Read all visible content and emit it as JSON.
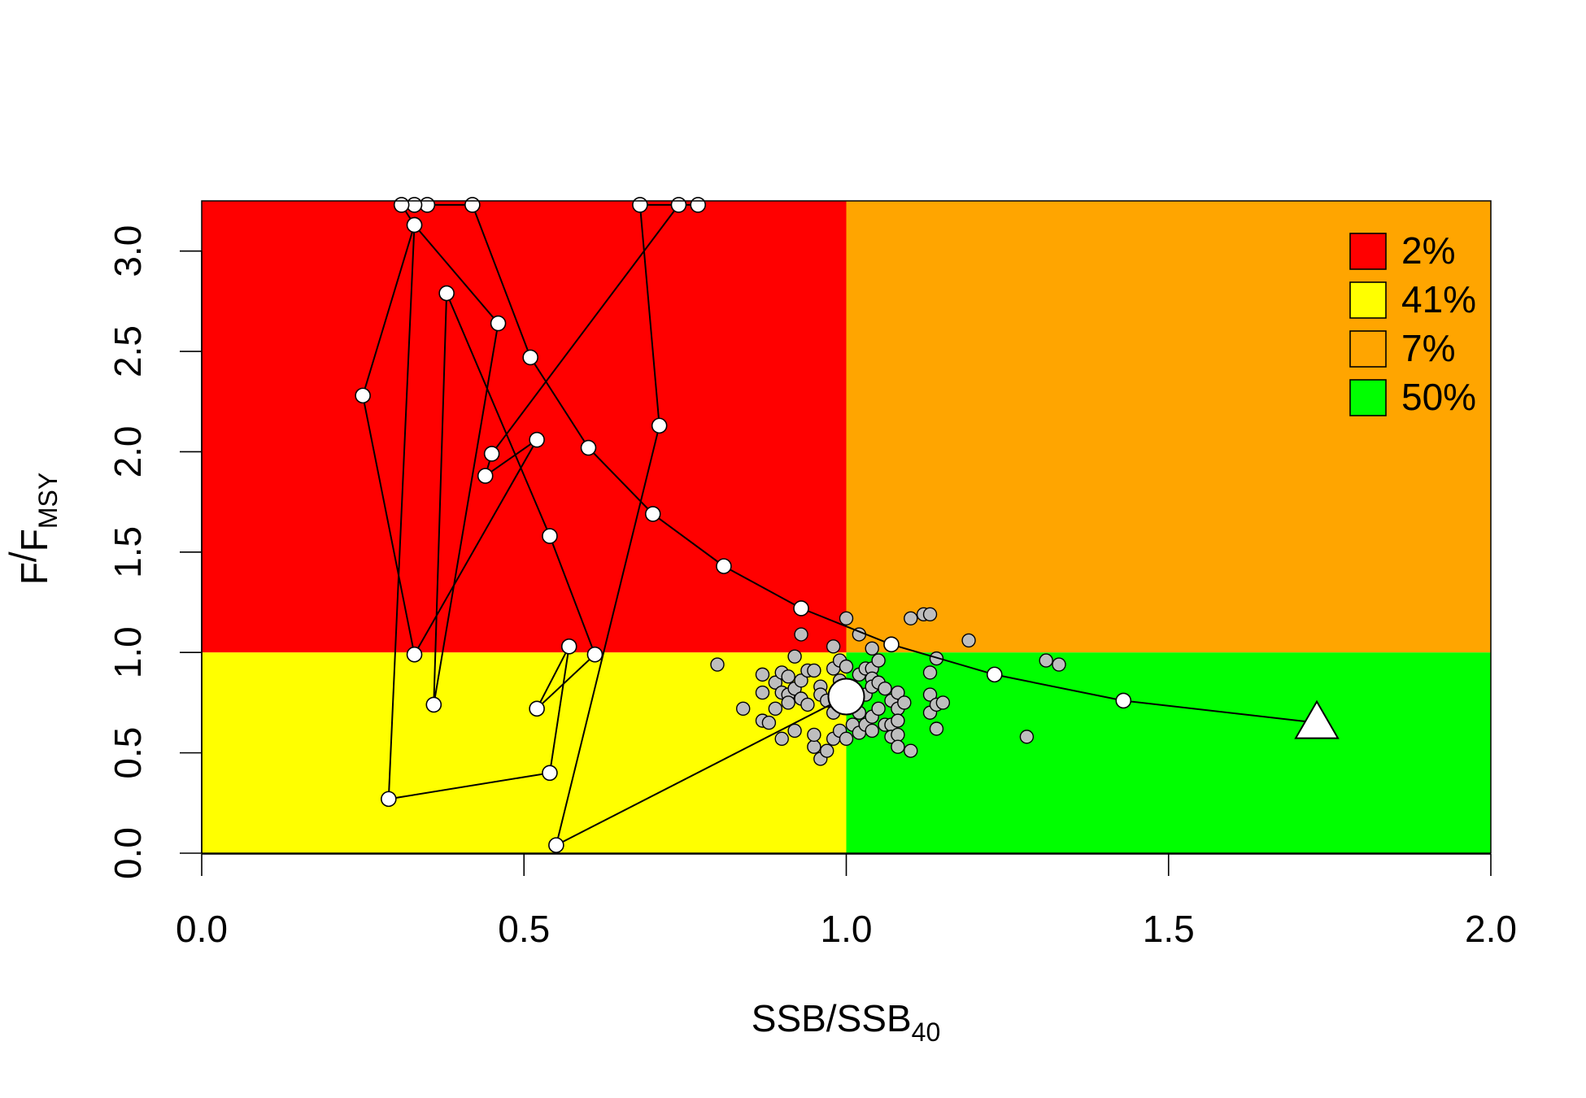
{
  "chart_data": {
    "type": "scatter",
    "title": "",
    "xlabel": {
      "main": "SSB/SSB",
      "sub": "40"
    },
    "ylabel": {
      "main": "F",
      "sep": "/",
      "main2": "F",
      "sub": "MSY"
    },
    "xlim": [
      0,
      2
    ],
    "ylim": [
      0,
      3.25
    ],
    "x_ticks": [
      {
        "value": 0,
        "label": "0.0"
      },
      {
        "value": 0.5,
        "label": "0.5"
      },
      {
        "value": 1,
        "label": "1.0"
      },
      {
        "value": 1.5,
        "label": "1.5"
      },
      {
        "value": 2,
        "label": "2.0"
      }
    ],
    "y_ticks": [
      {
        "value": 0,
        "label": "0.0"
      },
      {
        "value": 0.5,
        "label": "0.5"
      },
      {
        "value": 1,
        "label": "1.0"
      },
      {
        "value": 1.5,
        "label": "1.5"
      },
      {
        "value": 2,
        "label": "2.0"
      },
      {
        "value": 2.5,
        "label": "2.5"
      },
      {
        "value": 3,
        "label": "3.0"
      }
    ],
    "quadrants": [
      {
        "name": "overfished-overfishing",
        "x": [
          0,
          1
        ],
        "y": [
          1,
          3.25
        ],
        "color": "#ff0000"
      },
      {
        "name": "overfished",
        "x": [
          0,
          1
        ],
        "y": [
          0,
          1
        ],
        "color": "#ffff00"
      },
      {
        "name": "overfishing",
        "x": [
          1,
          2
        ],
        "y": [
          1,
          3.25
        ],
        "color": "#ffa500"
      },
      {
        "name": "healthy",
        "x": [
          1,
          2
        ],
        "y": [
          0,
          1
        ],
        "color": "#00ff00"
      }
    ],
    "legend": {
      "position": "top-right",
      "entries": [
        {
          "label": "2%",
          "color": "#ff0000"
        },
        {
          "label": "41%",
          "color": "#ffff00"
        },
        {
          "label": "7%",
          "color": "#ffa500"
        },
        {
          "label": "50%",
          "color": "#00ff00"
        }
      ]
    },
    "trajectory": [
      [
        1.73,
        0.65
      ],
      [
        1.43,
        0.76
      ],
      [
        1.23,
        0.89
      ],
      [
        1.07,
        1.04
      ],
      [
        0.93,
        1.22
      ],
      [
        0.81,
        1.43
      ],
      [
        0.7,
        1.69
      ],
      [
        0.6,
        2.02
      ],
      [
        0.51,
        2.47
      ],
      [
        0.42,
        3.23
      ],
      [
        0.35,
        3.23
      ],
      [
        0.33,
        3.23
      ],
      [
        0.31,
        3.23
      ],
      [
        0.33,
        3.13
      ],
      [
        0.46,
        2.64
      ],
      [
        0.36,
        0.74
      ],
      [
        0.38,
        2.79
      ],
      [
        0.54,
        1.58
      ],
      [
        0.61,
        0.99
      ],
      [
        0.52,
        0.72
      ],
      [
        0.57,
        1.03
      ],
      [
        0.54,
        0.4
      ],
      [
        0.29,
        0.27
      ],
      [
        0.33,
        3.13
      ],
      [
        0.25,
        2.28
      ],
      [
        0.33,
        0.99
      ],
      [
        0.52,
        2.06
      ],
      [
        0.44,
        1.88
      ],
      [
        0.45,
        1.99
      ],
      [
        0.74,
        3.23
      ],
      [
        0.77,
        3.23
      ],
      [
        0.68,
        3.23
      ],
      [
        0.71,
        2.13
      ],
      [
        0.55,
        0.04
      ],
      [
        1.0,
        0.78
      ]
    ],
    "trajectory_start": [
      1.73,
      0.65
    ],
    "trajectory_end": [
      1.0,
      0.78
    ],
    "uncertainty_points": [
      [
        0.8,
        0.94
      ],
      [
        0.84,
        0.72
      ],
      [
        0.87,
        0.89
      ],
      [
        0.87,
        0.8
      ],
      [
        0.87,
        0.66
      ],
      [
        0.88,
        0.65
      ],
      [
        0.89,
        0.72
      ],
      [
        0.89,
        0.85
      ],
      [
        0.9,
        0.9
      ],
      [
        0.9,
        0.8
      ],
      [
        0.9,
        0.57
      ],
      [
        0.91,
        0.88
      ],
      [
        0.91,
        0.79
      ],
      [
        0.91,
        0.75
      ],
      [
        0.92,
        0.98
      ],
      [
        0.92,
        0.82
      ],
      [
        0.92,
        0.61
      ],
      [
        0.93,
        1.09
      ],
      [
        0.93,
        0.86
      ],
      [
        0.93,
        0.77
      ],
      [
        0.94,
        0.91
      ],
      [
        0.94,
        0.74
      ],
      [
        0.95,
        0.91
      ],
      [
        0.95,
        0.53
      ],
      [
        0.95,
        0.59
      ],
      [
        0.96,
        0.83
      ],
      [
        0.96,
        0.79
      ],
      [
        0.96,
        0.47
      ],
      [
        0.97,
        0.51
      ],
      [
        0.97,
        0.76
      ],
      [
        0.98,
        1.03
      ],
      [
        0.98,
        0.92
      ],
      [
        0.98,
        0.7
      ],
      [
        0.98,
        0.57
      ],
      [
        0.99,
        0.96
      ],
      [
        0.99,
        0.86
      ],
      [
        0.99,
        0.61
      ],
      [
        1.0,
        1.17
      ],
      [
        1.0,
        0.93
      ],
      [
        1.0,
        0.75
      ],
      [
        1.0,
        0.57
      ],
      [
        1.01,
        0.64
      ],
      [
        1.02,
        1.09
      ],
      [
        1.02,
        0.89
      ],
      [
        1.02,
        0.7
      ],
      [
        1.02,
        0.6
      ],
      [
        1.03,
        0.92
      ],
      [
        1.03,
        0.79
      ],
      [
        1.03,
        0.64
      ],
      [
        1.04,
        1.02
      ],
      [
        1.04,
        0.92
      ],
      [
        1.04,
        0.87
      ],
      [
        1.04,
        0.83
      ],
      [
        1.04,
        0.68
      ],
      [
        1.04,
        0.61
      ],
      [
        1.05,
        0.96
      ],
      [
        1.05,
        0.85
      ],
      [
        1.05,
        0.72
      ],
      [
        1.06,
        0.82
      ],
      [
        1.06,
        0.64
      ],
      [
        1.07,
        0.76
      ],
      [
        1.07,
        0.64
      ],
      [
        1.07,
        0.58
      ],
      [
        1.08,
        0.8
      ],
      [
        1.08,
        0.72
      ],
      [
        1.08,
        0.66
      ],
      [
        1.08,
        0.59
      ],
      [
        1.08,
        0.53
      ],
      [
        1.09,
        0.75
      ],
      [
        1.1,
        1.17
      ],
      [
        1.1,
        0.51
      ],
      [
        1.12,
        1.19
      ],
      [
        1.13,
        1.19
      ],
      [
        1.13,
        0.79
      ],
      [
        1.13,
        0.9
      ],
      [
        1.13,
        0.7
      ],
      [
        1.14,
        0.97
      ],
      [
        1.14,
        0.74
      ],
      [
        1.14,
        0.62
      ],
      [
        1.15,
        0.75
      ],
      [
        1.19,
        1.06
      ],
      [
        1.28,
        0.58
      ],
      [
        1.31,
        0.96
      ],
      [
        1.33,
        0.94
      ]
    ],
    "colors": {
      "line": "#000000",
      "trajectory_point": "#ffffff",
      "uncertainty_point": "#bebebe"
    },
    "grid": false
  }
}
